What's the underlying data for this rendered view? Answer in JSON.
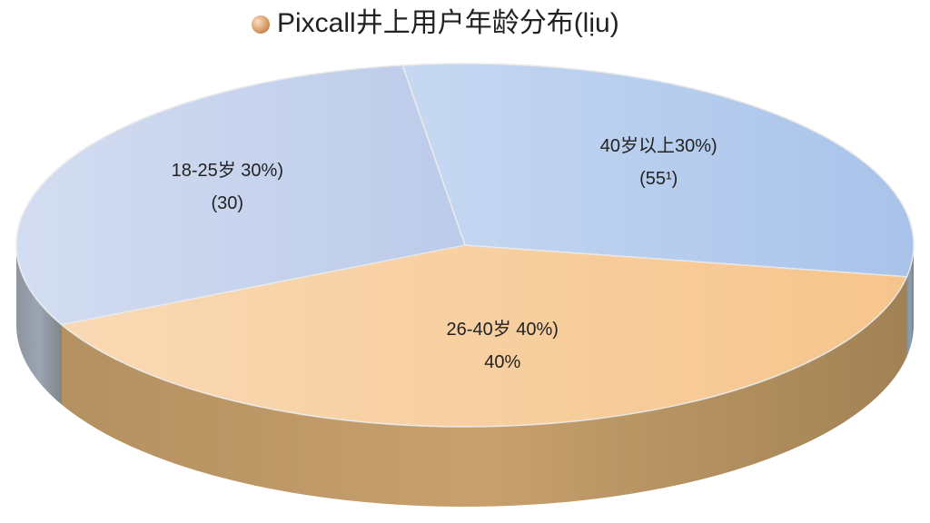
{
  "chart_data": {
    "type": "pie",
    "title": "Pixcall井上用户年龄分布(lịu)",
    "values": [
      40,
      30,
      30
    ],
    "value_labels": [
      "26-40岁 40%)",
      "18-25岁 30%)",
      "40岁以上30%)"
    ],
    "notes": [
      "40%",
      "(30)",
      "(55¹)"
    ],
    "colors": [
      "#f6c58c",
      "#bccbea",
      "#a8c3ea"
    ],
    "three_d": true
  }
}
